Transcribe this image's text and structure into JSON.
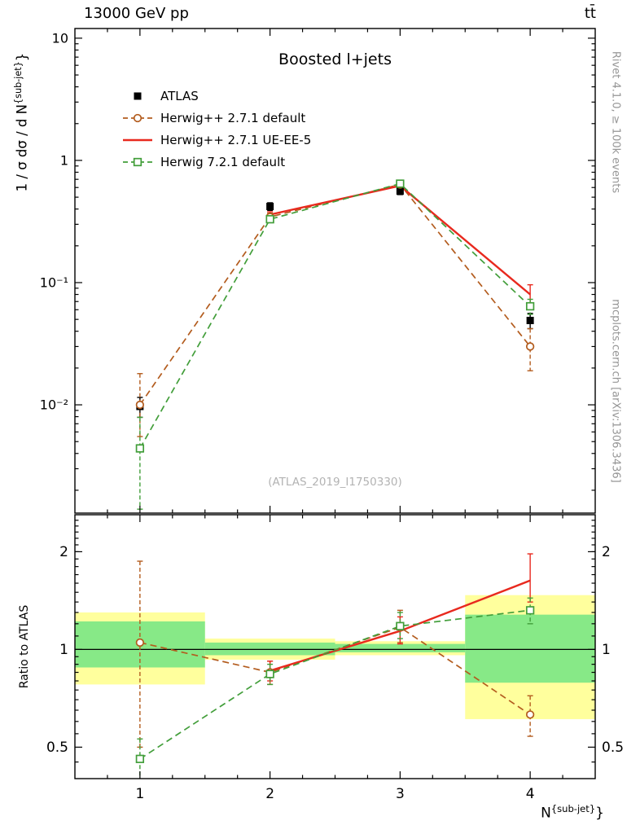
{
  "header": {
    "left": "13000 GeV pp",
    "right": "tt̄"
  },
  "side_texts": {
    "rivet": "Rivet 4.1.0, ≥ 100k events",
    "mcplots": "mcplots.cern.ch [arXiv:1306.3436]"
  },
  "labels": {
    "title": "Boosted l+jets",
    "watermark": "(ATLAS_2019_I1750330)",
    "ylabel_main": "1 / σ dσ / d N",
    "ylabel_sup": "{sub-jet}",
    "ylabel_end": "}",
    "ratio_ylabel": "Ratio to ATLAS",
    "xlabel_main": "N",
    "xlabel_sup": "{sub-jet}",
    "xlabel_end": "}"
  },
  "colors": {
    "frame": "#000000",
    "atlas": "#000000",
    "herwigpp_default": "#b35c1e",
    "herwigpp_ueee5": "#e8291e",
    "herwig7": "#429e3a",
    "band_yellow": "#ffff9d",
    "band_green": "#87e987",
    "watermark_gray": "#b3b3b3",
    "side_text_gray": "#969696"
  },
  "chart_data": [
    {
      "type": "line",
      "title": "Boosted l+jets",
      "xlabel": "N^{sub-jet}}",
      "ylabel": "1 / σ dσ / d N^{sub-jet}}",
      "yscale": "log",
      "xlim": [
        0.5,
        4.5
      ],
      "ylim": [
        0.0013,
        12
      ],
      "x": [
        1,
        2,
        3,
        4
      ],
      "x_ticks": [
        1,
        2,
        3,
        4
      ],
      "y_ticks": [
        {
          "v": 0.01,
          "label": "10⁻²"
        },
        {
          "v": 0.1,
          "label": "10⁻¹"
        },
        {
          "v": 1,
          "label": "1"
        },
        {
          "v": 10,
          "label": "10"
        }
      ],
      "series": [
        {
          "name": "ATLAS",
          "color": "#000000",
          "marker": "square-filled",
          "line": "none",
          "values": [
            0.0097,
            0.42,
            0.56,
            0.049
          ],
          "err": [
            [
              0.0018,
              0.0018
            ],
            [
              0.03,
              0.03
            ],
            [
              0.035,
              0.035
            ],
            [
              0.007,
              0.007
            ]
          ]
        },
        {
          "name": "Herwig++ 2.7.1 default",
          "color": "#b35c1e",
          "marker": "circle-open",
          "line": "dashed",
          "values": [
            0.01,
            0.345,
            0.635,
            0.03
          ],
          "err": [
            [
              0.0045,
              0.008
            ],
            [
              0.025,
              0.025
            ],
            [
              0.04,
              0.04
            ],
            [
              0.011,
              0.012
            ]
          ]
        },
        {
          "name": "Herwig++ 2.7.1 UE-EE-5",
          "color": "#e8291e",
          "marker": "none",
          "line": "solid",
          "values": [
            null,
            0.36,
            0.62,
            0.08
          ],
          "err": [
            null,
            [
              0.02,
              0.02
            ],
            [
              0.035,
              0.035
            ],
            [
              0.016,
              0.016
            ]
          ]
        },
        {
          "name": "Herwig 7.2.1 default",
          "color": "#429e3a",
          "marker": "square-open",
          "line": "dashed",
          "values": [
            0.0044,
            0.33,
            0.645,
            0.064
          ],
          "err": [
            [
              0.003,
              0.0035
            ],
            [
              0.02,
              0.02
            ],
            [
              0.035,
              0.035
            ],
            [
              0.009,
              0.009
            ]
          ]
        }
      ]
    },
    {
      "type": "ratio",
      "ylabel": "Ratio to ATLAS",
      "yscale": "log",
      "xlim": [
        0.5,
        4.5
      ],
      "ylim": [
        0.4,
        2.6
      ],
      "reference_line": 1,
      "x": [
        1,
        2,
        3,
        4
      ],
      "y_ticks": [
        {
          "v": 0.5,
          "label": "0.5"
        },
        {
          "v": 1,
          "label": "1"
        },
        {
          "v": 2,
          "label": "2"
        }
      ],
      "bands": [
        {
          "x": [
            0.5,
            1.5
          ],
          "yellow": [
            0.78,
            1.3
          ],
          "green": [
            0.88,
            1.22
          ]
        },
        {
          "x": [
            1.5,
            2.5
          ],
          "yellow": [
            0.93,
            1.08
          ],
          "green": [
            0.96,
            1.05
          ]
        },
        {
          "x": [
            2.5,
            3.5
          ],
          "yellow": [
            0.96,
            1.06
          ],
          "green": [
            0.98,
            1.04
          ]
        },
        {
          "x": [
            3.5,
            4.5
          ],
          "yellow": [
            0.61,
            1.47
          ],
          "green": [
            0.79,
            1.28
          ]
        }
      ],
      "series": [
        {
          "name": "Herwig++ 2.7.1 default",
          "color": "#b35c1e",
          "marker": "circle-open",
          "line": "dashed",
          "values": [
            1.05,
            0.85,
            1.17,
            0.63
          ],
          "err": [
            [
              0.55,
              0.82
            ],
            [
              0.07,
              0.07
            ],
            [
              0.12,
              0.15
            ],
            [
              0.09,
              0.09
            ]
          ]
        },
        {
          "name": "Herwig++ 2.7.1 UE-EE-5",
          "color": "#e8291e",
          "marker": "none",
          "line": "solid",
          "values": [
            null,
            0.86,
            1.14,
            1.63
          ],
          "err": [
            null,
            [
              0.06,
              0.06
            ],
            [
              0.1,
              0.12
            ],
            [
              0.23,
              0.34
            ]
          ]
        },
        {
          "name": "Herwig 7.2.1 default",
          "color": "#429e3a",
          "marker": "square-open",
          "line": "dashed",
          "values": [
            0.46,
            0.84,
            1.18,
            1.32
          ],
          "err": [
            [
              0.12,
              0.07
            ],
            [
              0.06,
              0.06
            ],
            [
              0.1,
              0.12
            ],
            [
              0.12,
              0.12
            ]
          ]
        }
      ]
    }
  ]
}
